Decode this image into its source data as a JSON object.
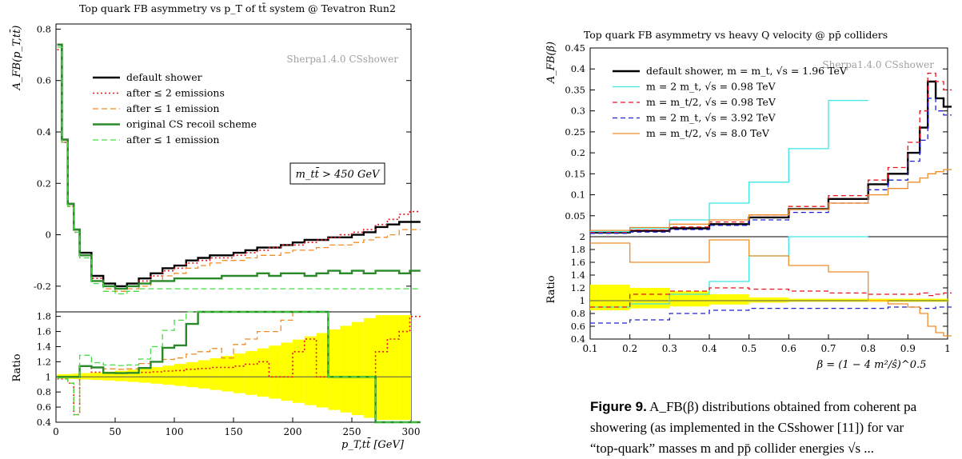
{
  "chart_data": [
    {
      "type": "line",
      "title": "Top quark FB asymmetry vs p_T of tt̄ system @ Tevatron Run2",
      "ylabel": "A_FB(p_T,tt̄)",
      "ratio_ylabel": "Ratio",
      "xlabel": "p_T,tt̄   [GeV]",
      "watermark": "Sherpa1.4.0 CSshower",
      "cut_label": "m_tt̄ > 450 GeV",
      "xlim": [
        0,
        300
      ],
      "ylim": [
        -0.3,
        0.82
      ],
      "ratio_ylim": [
        0.4,
        1.86
      ],
      "x_ticks": [
        0,
        50,
        100,
        150,
        200,
        250,
        300
      ],
      "y_ticks": [
        -0.2,
        0,
        0.2,
        0.4,
        0.6,
        0.8
      ],
      "ratio_ticks": [
        0.4,
        0.6,
        0.8,
        1,
        1.2,
        1.4,
        1.6,
        1.8
      ],
      "x": [
        1,
        5,
        10,
        15,
        20,
        30,
        40,
        50,
        60,
        70,
        80,
        90,
        100,
        110,
        120,
        130,
        140,
        150,
        160,
        170,
        180,
        190,
        200,
        210,
        220,
        230,
        240,
        250,
        260,
        270,
        280,
        290,
        299
      ],
      "series": [
        {
          "name": "default shower",
          "color": "#000000",
          "width": 2.4,
          "dash": "",
          "values": [
            0.74,
            0.37,
            0.12,
            0.02,
            -0.07,
            -0.16,
            -0.19,
            -0.2,
            -0.19,
            -0.17,
            -0.15,
            -0.13,
            -0.12,
            -0.1,
            -0.09,
            -0.08,
            -0.08,
            -0.07,
            -0.06,
            -0.05,
            -0.05,
            -0.04,
            -0.03,
            -0.02,
            -0.02,
            -0.01,
            -0.01,
            0.0,
            0.01,
            0.03,
            0.04,
            0.05,
            0.05
          ]
        },
        {
          "name": "after ≤ 2 emissions",
          "color": "#e8141c",
          "width": 1.6,
          "dash": "2,3",
          "values": [
            0.72,
            0.36,
            0.11,
            0.01,
            -0.08,
            -0.17,
            -0.2,
            -0.21,
            -0.2,
            -0.18,
            -0.16,
            -0.14,
            -0.13,
            -0.11,
            -0.1,
            -0.09,
            -0.09,
            -0.08,
            -0.07,
            -0.06,
            -0.05,
            -0.04,
            -0.04,
            -0.03,
            -0.02,
            -0.01,
            0.0,
            0.01,
            0.02,
            0.04,
            0.06,
            0.08,
            0.09
          ]
        },
        {
          "name": "after ≤ 1 emission",
          "color": "#f08c28",
          "width": 1.3,
          "dash": "7,4",
          "values": [
            0.73,
            0.36,
            0.11,
            0.01,
            -0.08,
            -0.18,
            -0.21,
            -0.22,
            -0.21,
            -0.2,
            -0.18,
            -0.16,
            -0.15,
            -0.13,
            -0.12,
            -0.11,
            -0.1,
            -0.1,
            -0.09,
            -0.08,
            -0.08,
            -0.07,
            -0.06,
            -0.06,
            -0.05,
            -0.04,
            -0.04,
            -0.03,
            -0.02,
            -0.01,
            0.0,
            0.02,
            0.02
          ]
        },
        {
          "name": "original CS recoil scheme",
          "color": "#2a8a2a",
          "width": 2.4,
          "dash": "",
          "values": [
            0.74,
            0.37,
            0.12,
            0.02,
            -0.08,
            -0.18,
            -0.2,
            -0.21,
            -0.2,
            -0.19,
            -0.18,
            -0.18,
            -0.17,
            -0.17,
            -0.17,
            -0.17,
            -0.16,
            -0.16,
            -0.16,
            -0.15,
            -0.16,
            -0.15,
            -0.15,
            -0.16,
            -0.15,
            -0.14,
            -0.15,
            -0.14,
            -0.15,
            -0.14,
            -0.14,
            -0.15,
            -0.14
          ]
        },
        {
          "name": "after ≤ 1 emission",
          "color": "#44dd44",
          "width": 1.3,
          "dash": "7,4",
          "values": [
            0.73,
            0.36,
            0.11,
            0.01,
            -0.09,
            -0.19,
            -0.22,
            -0.23,
            -0.22,
            -0.21,
            -0.21,
            -0.21,
            -0.21,
            -0.21,
            -0.21,
            -0.21,
            -0.21,
            -0.21,
            -0.21,
            -0.21,
            -0.21,
            -0.21,
            -0.21,
            -0.21,
            -0.21,
            -0.21,
            -0.21,
            -0.21,
            -0.21,
            -0.21,
            -0.21,
            -0.21,
            -0.21
          ]
        }
      ],
      "ratio_band_color": "#ffff00"
    },
    {
      "type": "line",
      "title": "Top quark FB asymmetry vs heavy Q velocity @ pp̄ colliders",
      "ylabel": "A_FB(β)",
      "ratio_ylabel": "Ratio",
      "xlabel": "β = (1 − 4 m²/ŝ)^0.5",
      "watermark": "Sherpa1.4.0 CSshower",
      "xlim": [
        0.1,
        1.0
      ],
      "ylim": [
        0,
        0.45
      ],
      "ratio_ylim": [
        0.4,
        2.0
      ],
      "x_ticks": [
        0.1,
        0.2,
        0.3,
        0.4,
        0.5,
        0.6,
        0.7,
        0.8,
        0.9,
        1.0
      ],
      "y_ticks": [
        0.05,
        0.1,
        0.15,
        0.2,
        0.25,
        0.3,
        0.35,
        0.4,
        0.45
      ],
      "ratio_ticks": [
        0.4,
        0.6,
        0.8,
        1,
        1.2,
        1.4,
        1.6,
        1.8,
        2
      ],
      "x": [
        0.1,
        0.2,
        0.3,
        0.4,
        0.5,
        0.6,
        0.7,
        0.8,
        0.85,
        0.9,
        0.93,
        0.95,
        0.97,
        0.99
      ],
      "series": [
        {
          "name": "default shower,  m = m_t,  √s = 1.96 TeV",
          "color": "#000000",
          "width": 2.4,
          "dash": "",
          "values": [
            0.01,
            0.014,
            0.02,
            0.03,
            0.046,
            0.066,
            0.09,
            0.125,
            0.15,
            0.2,
            0.26,
            0.37,
            0.33,
            0.31
          ]
        },
        {
          "name": "m = 2 m_t,  √s = 0.98 TeV",
          "color": "#3ee6e6",
          "width": 1.3,
          "dash": "",
          "values": [
            0.012,
            0.02,
            0.04,
            0.08,
            0.13,
            0.21,
            0.325,
            null,
            null,
            null,
            null,
            null,
            null,
            null
          ]
        },
        {
          "name": "m = m_t/2,  √s = 0.98 TeV",
          "color": "#e8141c",
          "width": 1.3,
          "dash": "6,4",
          "values": [
            0.01,
            0.016,
            0.023,
            0.035,
            0.052,
            0.072,
            0.098,
            0.135,
            0.165,
            0.225,
            0.3,
            0.39,
            0.37,
            0.35
          ]
        },
        {
          "name": "m = 2 m_t,  √s = 3.92 TeV",
          "color": "#2020d0",
          "width": 1.3,
          "dash": "6,4",
          "values": [
            0.008,
            0.011,
            0.017,
            0.027,
            0.04,
            0.058,
            0.08,
            0.112,
            0.135,
            0.18,
            0.23,
            0.33,
            0.3,
            0.29
          ]
        },
        {
          "name": "m = m_t/2,  √s = 8.0 TeV",
          "color": "#f08c28",
          "width": 1.3,
          "dash": "",
          "values": [
            0.015,
            0.022,
            0.03,
            0.04,
            0.052,
            0.065,
            0.08,
            0.1,
            0.115,
            0.13,
            0.14,
            0.15,
            0.155,
            0.16
          ]
        }
      ],
      "ratio_series": [
        {
          "color": "#3ee6e6",
          "values": [
            0.9,
            0.95,
            1.1,
            1.3,
            1.7,
            2.1,
            2.4,
            null,
            null,
            null,
            null,
            null,
            null,
            null
          ]
        },
        {
          "color": "#e8141c",
          "values": [
            0.9,
            1.1,
            1.15,
            1.2,
            1.18,
            1.15,
            1.12,
            1.1,
            1.1,
            1.1,
            1.12,
            1.08,
            1.1,
            1.12
          ]
        },
        {
          "color": "#2020d0",
          "values": [
            0.65,
            0.7,
            0.8,
            0.85,
            0.88,
            0.88,
            0.88,
            0.88,
            0.9,
            0.9,
            0.88,
            0.88,
            0.9,
            0.9
          ]
        },
        {
          "color": "#f08c28",
          "values": [
            1.9,
            1.6,
            1.6,
            1.95,
            1.7,
            1.55,
            1.45,
            1.0,
            0.95,
            0.9,
            0.8,
            0.6,
            0.5,
            0.45
          ]
        }
      ],
      "ratio_band_color": "#ffff00"
    }
  ],
  "caption": {
    "label": "Figure 9.",
    "line1": "A_FB(β) distributions obtained from coherent pa",
    "line2": "showering (as implemented in the CSshower [11]) for var",
    "line3": "“top-quark” masses m and pp̄ collider energies √s ..."
  }
}
